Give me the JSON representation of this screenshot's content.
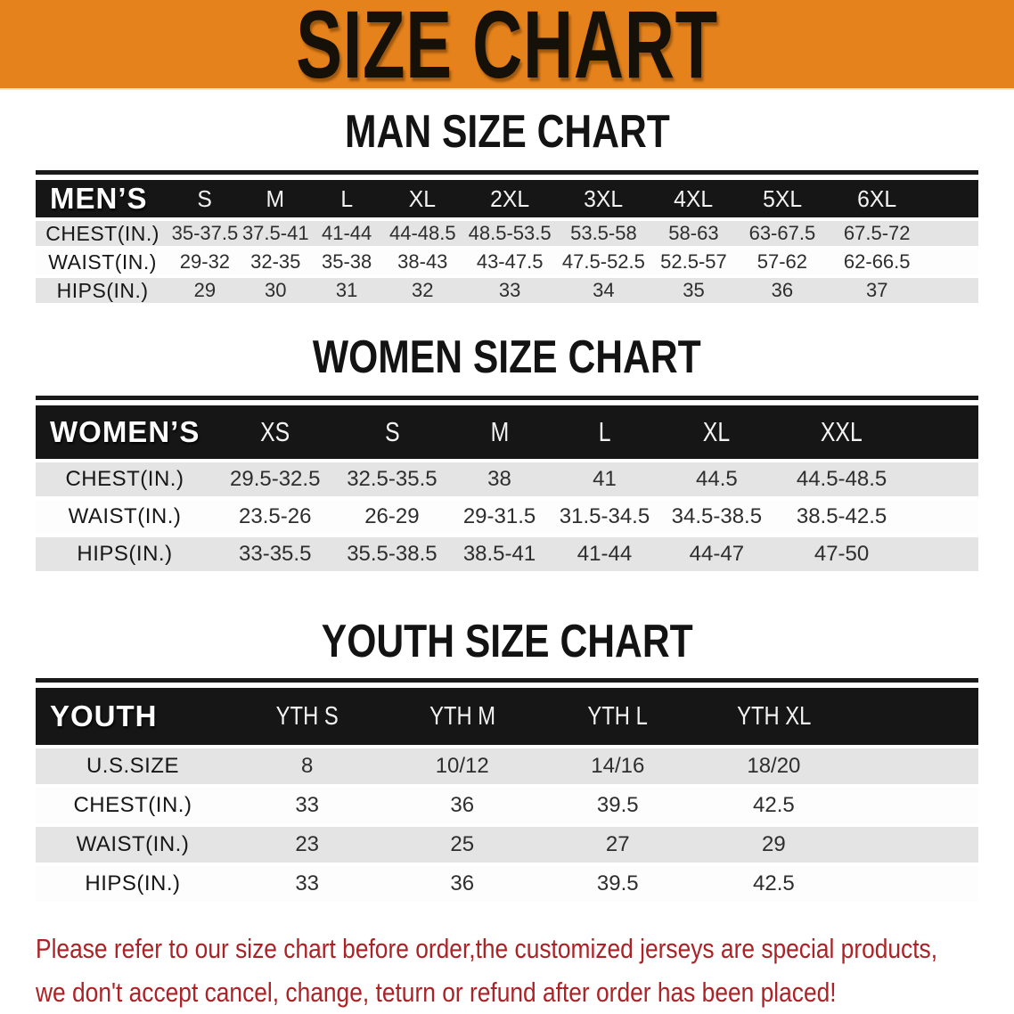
{
  "banner": {
    "title": "SIZE CHART"
  },
  "colors": {
    "banner_bg": "#e5821b",
    "header_bar": "#161616",
    "row_stripe": "#e4e4e4",
    "disclaimer_red": "#ab2327"
  },
  "sections": [
    {
      "id": "men",
      "heading": "MAN SIZE CHART",
      "table": {
        "group_label": "MEN’S",
        "columns": [
          "S",
          "M",
          "L",
          "XL",
          "2XL",
          "3XL",
          "4XL",
          "5XL",
          "6XL"
        ],
        "rows": [
          {
            "label": "CHEST(IN.)",
            "values": [
              "35-37.5",
              "37.5-41",
              "41-44",
              "44-48.5",
              "48.5-53.5",
              "53.5-58",
              "58-63",
              "63-67.5",
              "67.5-72"
            ]
          },
          {
            "label": "WAIST(IN.)",
            "values": [
              "29-32",
              "32-35",
              "35-38",
              "38-43",
              "43-47.5",
              "47.5-52.5",
              "52.5-57",
              "57-62",
              "62-66.5"
            ]
          },
          {
            "label": "HIPS(IN.)",
            "values": [
              "29",
              "30",
              "31",
              "32",
              "33",
              "34",
              "35",
              "36",
              "37"
            ]
          }
        ]
      }
    },
    {
      "id": "women",
      "heading": "WOMEN SIZE CHART",
      "table": {
        "group_label": "WOMEN’S",
        "columns": [
          "XS",
          "S",
          "M",
          "L",
          "XL",
          "XXL"
        ],
        "rows": [
          {
            "label": "CHEST(IN.)",
            "values": [
              "29.5-32.5",
              "32.5-35.5",
              "38",
              "41",
              "44.5",
              "44.5-48.5"
            ]
          },
          {
            "label": "WAIST(IN.)",
            "values": [
              "23.5-26",
              "26-29",
              "29-31.5",
              "31.5-34.5",
              "34.5-38.5",
              "38.5-42.5"
            ]
          },
          {
            "label": "HIPS(IN.)",
            "values": [
              "33-35.5",
              "35.5-38.5",
              "38.5-41",
              "41-44",
              "44-47",
              "47-50"
            ]
          }
        ]
      }
    },
    {
      "id": "youth",
      "heading": "YOUTH SIZE CHART",
      "table": {
        "group_label": "YOUTH",
        "columns": [
          "YTH S",
          "YTH M",
          "YTH L",
          "YTH XL"
        ],
        "rows": [
          {
            "label": "U.S.SIZE",
            "values": [
              "8",
              "10/12",
              "14/16",
              "18/20"
            ]
          },
          {
            "label": "CHEST(IN.)",
            "values": [
              "33",
              "36",
              "39.5",
              "42.5"
            ]
          },
          {
            "label": "WAIST(IN.)",
            "values": [
              "23",
              "25",
              "27",
              "29"
            ]
          },
          {
            "label": "HIPS(IN.)",
            "values": [
              "33",
              "36",
              "39.5",
              "42.5"
            ]
          }
        ]
      }
    }
  ],
  "disclaimer": {
    "line1": "Please refer to our size chart before order,the customized jerseys are special products,",
    "line2": "we don't accept cancel, change, teturn or refund after order has been placed!"
  }
}
